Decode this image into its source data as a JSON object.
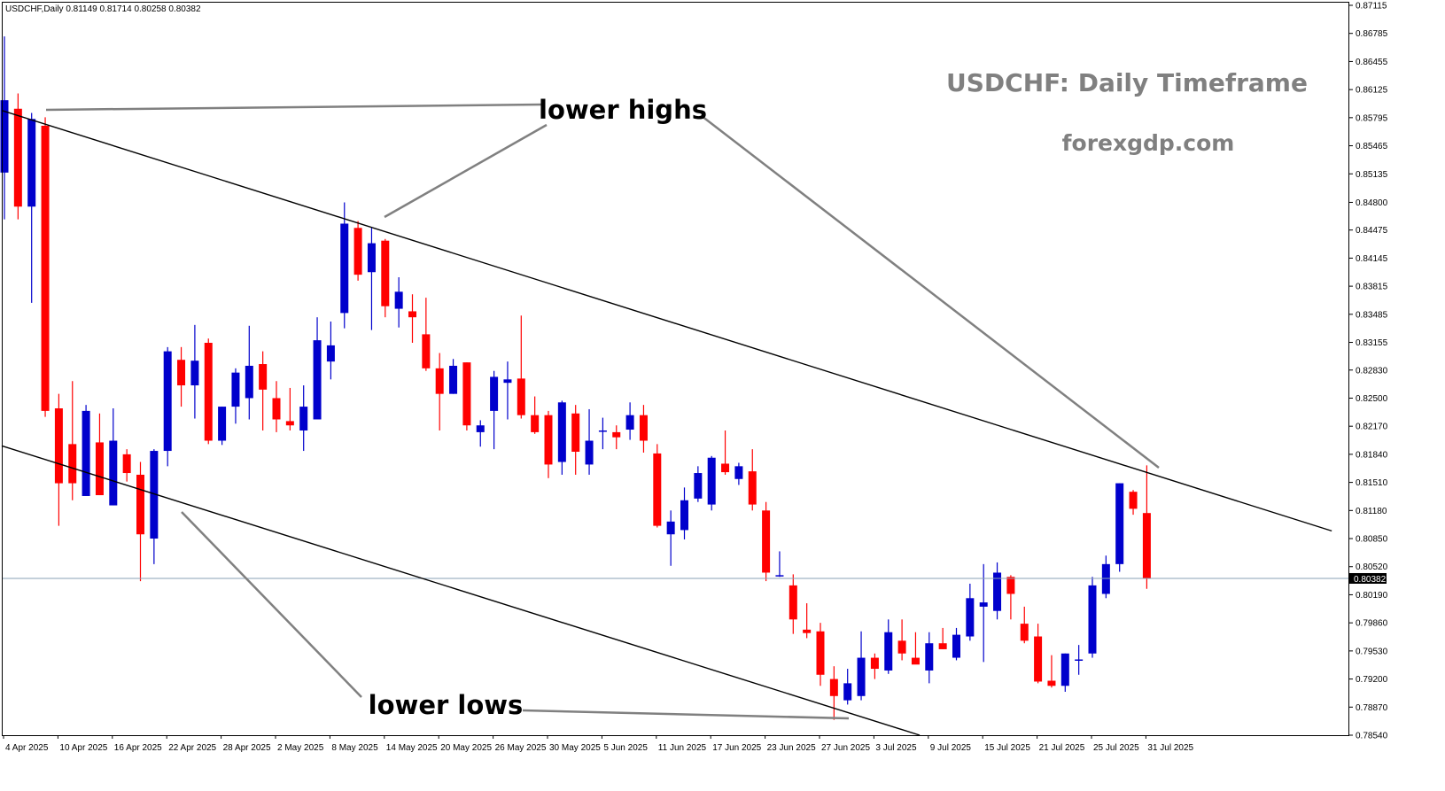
{
  "chart_data": {
    "type": "candlestick",
    "symbol_header": "USDCHF,Daily  0.81149 0.81714 0.80258 0.80382",
    "title": "USDCHF: Daily Timeframe",
    "subtitle": "forexgdp.com",
    "current_price": 0.80382,
    "current_price_label": "0.80382",
    "ylim": [
      0.7854,
      0.87115
    ],
    "y_ticks": [
      "0.87115",
      "0.86785",
      "0.86455",
      "0.86125",
      "0.85795",
      "0.85465",
      "0.85135",
      "0.84800",
      "0.84475",
      "0.84145",
      "0.83815",
      "0.83485",
      "0.83155",
      "0.82830",
      "0.82500",
      "0.82170",
      "0.81840",
      "0.81510",
      "0.81180",
      "0.80850",
      "0.80520",
      "0.80190",
      "0.79860",
      "0.79530",
      "0.79200",
      "0.78870",
      "0.78540"
    ],
    "x_labels": [
      {
        "label": "4 Apr 2025",
        "index": 0
      },
      {
        "label": "10 Apr 2025",
        "index": 4
      },
      {
        "label": "16 Apr 2025",
        "index": 8
      },
      {
        "label": "22 Apr 2025",
        "index": 12
      },
      {
        "label": "28 Apr 2025",
        "index": 16
      },
      {
        "label": "2 May 2025",
        "index": 20
      },
      {
        "label": "8 May 2025",
        "index": 24
      },
      {
        "label": "14 May 2025",
        "index": 28
      },
      {
        "label": "20 May 2025",
        "index": 32
      },
      {
        "label": "26 May 2025",
        "index": 36
      },
      {
        "label": "30 May 2025",
        "index": 40
      },
      {
        "label": "5 Jun 2025",
        "index": 44
      },
      {
        "label": "11 Jun 2025",
        "index": 48
      },
      {
        "label": "17 Jun 2025",
        "index": 52
      },
      {
        "label": "23 Jun 2025",
        "index": 56
      },
      {
        "label": "27 Jun 2025",
        "index": 60
      },
      {
        "label": "3 Jul 2025",
        "index": 64
      },
      {
        "label": "9 Jul 2025",
        "index": 68
      },
      {
        "label": "15 Jul 2025",
        "index": 72
      },
      {
        "label": "21 Jul 2025",
        "index": 76
      },
      {
        "label": "25 Jul 2025",
        "index": 80
      },
      {
        "label": "31 Jul 2025",
        "index": 84
      }
    ],
    "bull_color": "#0000cc",
    "bear_color": "#ff0000",
    "candles": [
      {
        "o": 0.8515,
        "h": 0.8675,
        "l": 0.846,
        "c": 0.86
      },
      {
        "o": 0.859,
        "h": 0.8608,
        "l": 0.846,
        "c": 0.8475
      },
      {
        "o": 0.8475,
        "h": 0.8585,
        "l": 0.8362,
        "c": 0.8578
      },
      {
        "o": 0.857,
        "h": 0.858,
        "l": 0.8228,
        "c": 0.8235
      },
      {
        "o": 0.8238,
        "h": 0.8255,
        "l": 0.81,
        "c": 0.815
      },
      {
        "o": 0.8196,
        "h": 0.827,
        "l": 0.813,
        "c": 0.815
      },
      {
        "o": 0.8135,
        "h": 0.8242,
        "l": 0.8135,
        "c": 0.8235
      },
      {
        "o": 0.8198,
        "h": 0.8232,
        "l": 0.8136,
        "c": 0.8136
      },
      {
        "o": 0.8124,
        "h": 0.8238,
        "l": 0.8124,
        "c": 0.82
      },
      {
        "o": 0.8184,
        "h": 0.819,
        "l": 0.8152,
        "c": 0.8162
      },
      {
        "o": 0.816,
        "h": 0.8175,
        "l": 0.8035,
        "c": 0.809
      },
      {
        "o": 0.8085,
        "h": 0.819,
        "l": 0.8055,
        "c": 0.8188
      },
      {
        "o": 0.8188,
        "h": 0.831,
        "l": 0.817,
        "c": 0.8305
      },
      {
        "o": 0.8295,
        "h": 0.831,
        "l": 0.824,
        "c": 0.8265
      },
      {
        "o": 0.8265,
        "h": 0.8336,
        "l": 0.8226,
        "c": 0.8294
      },
      {
        "o": 0.8315,
        "h": 0.832,
        "l": 0.8196,
        "c": 0.82
      },
      {
        "o": 0.82,
        "h": 0.824,
        "l": 0.8195,
        "c": 0.824
      },
      {
        "o": 0.824,
        "h": 0.8285,
        "l": 0.822,
        "c": 0.828
      },
      {
        "o": 0.825,
        "h": 0.8335,
        "l": 0.8225,
        "c": 0.8288
      },
      {
        "o": 0.829,
        "h": 0.8305,
        "l": 0.8212,
        "c": 0.826
      },
      {
        "o": 0.825,
        "h": 0.827,
        "l": 0.821,
        "c": 0.8225
      },
      {
        "o": 0.8223,
        "h": 0.8262,
        "l": 0.8212,
        "c": 0.8218
      },
      {
        "o": 0.8212,
        "h": 0.8265,
        "l": 0.8188,
        "c": 0.824
      },
      {
        "o": 0.8225,
        "h": 0.8345,
        "l": 0.8225,
        "c": 0.8318
      },
      {
        "o": 0.8293,
        "h": 0.834,
        "l": 0.8272,
        "c": 0.8312
      },
      {
        "o": 0.835,
        "h": 0.848,
        "l": 0.8332,
        "c": 0.8455
      },
      {
        "o": 0.845,
        "h": 0.8458,
        "l": 0.8388,
        "c": 0.8395
      },
      {
        "o": 0.8398,
        "h": 0.845,
        "l": 0.833,
        "c": 0.8432
      },
      {
        "o": 0.8435,
        "h": 0.8437,
        "l": 0.8345,
        "c": 0.8358
      },
      {
        "o": 0.8355,
        "h": 0.8392,
        "l": 0.8333,
        "c": 0.8375
      },
      {
        "o": 0.8352,
        "h": 0.8372,
        "l": 0.8315,
        "c": 0.8345
      },
      {
        "o": 0.8325,
        "h": 0.8368,
        "l": 0.8282,
        "c": 0.8285
      },
      {
        "o": 0.8285,
        "h": 0.8303,
        "l": 0.8212,
        "c": 0.8255
      },
      {
        "o": 0.8255,
        "h": 0.8296,
        "l": 0.8255,
        "c": 0.8288
      },
      {
        "o": 0.8292,
        "h": 0.8292,
        "l": 0.8212,
        "c": 0.8218
      },
      {
        "o": 0.821,
        "h": 0.8224,
        "l": 0.8193,
        "c": 0.8218
      },
      {
        "o": 0.8235,
        "h": 0.8282,
        "l": 0.819,
        "c": 0.8275
      },
      {
        "o": 0.8268,
        "h": 0.8293,
        "l": 0.8225,
        "c": 0.8272
      },
      {
        "o": 0.8273,
        "h": 0.8347,
        "l": 0.8226,
        "c": 0.823
      },
      {
        "o": 0.823,
        "h": 0.8252,
        "l": 0.8208,
        "c": 0.821
      },
      {
        "o": 0.823,
        "h": 0.8235,
        "l": 0.8156,
        "c": 0.8172
      },
      {
        "o": 0.8175,
        "h": 0.8247,
        "l": 0.816,
        "c": 0.8245
      },
      {
        "o": 0.8232,
        "h": 0.8242,
        "l": 0.816,
        "c": 0.8187
      },
      {
        "o": 0.8172,
        "h": 0.8237,
        "l": 0.816,
        "c": 0.82
      },
      {
        "o": 0.8212,
        "h": 0.8227,
        "l": 0.819,
        "c": 0.8212
      },
      {
        "o": 0.821,
        "h": 0.8218,
        "l": 0.819,
        "c": 0.8204
      },
      {
        "o": 0.8213,
        "h": 0.8245,
        "l": 0.8201,
        "c": 0.823
      },
      {
        "o": 0.823,
        "h": 0.8242,
        "l": 0.8186,
        "c": 0.82
      },
      {
        "o": 0.8185,
        "h": 0.8196,
        "l": 0.8098,
        "c": 0.81
      },
      {
        "o": 0.809,
        "h": 0.8118,
        "l": 0.8053,
        "c": 0.8105
      },
      {
        "o": 0.8095,
        "h": 0.8145,
        "l": 0.8084,
        "c": 0.813
      },
      {
        "o": 0.8132,
        "h": 0.817,
        "l": 0.8128,
        "c": 0.8162
      },
      {
        "o": 0.8125,
        "h": 0.8182,
        "l": 0.8118,
        "c": 0.818
      },
      {
        "o": 0.8173,
        "h": 0.8212,
        "l": 0.816,
        "c": 0.8163
      },
      {
        "o": 0.8155,
        "h": 0.8174,
        "l": 0.8148,
        "c": 0.817
      },
      {
        "o": 0.8164,
        "h": 0.819,
        "l": 0.8118,
        "c": 0.8125
      },
      {
        "o": 0.8118,
        "h": 0.8128,
        "l": 0.8035,
        "c": 0.8045
      },
      {
        "o": 0.8042,
        "h": 0.807,
        "l": 0.804,
        "c": 0.8042
      },
      {
        "o": 0.803,
        "h": 0.8043,
        "l": 0.7973,
        "c": 0.799
      },
      {
        "o": 0.7978,
        "h": 0.8009,
        "l": 0.7968,
        "c": 0.7974
      },
      {
        "o": 0.7976,
        "h": 0.7986,
        "l": 0.7912,
        "c": 0.7925
      },
      {
        "o": 0.792,
        "h": 0.7935,
        "l": 0.7872,
        "c": 0.79
      },
      {
        "o": 0.7895,
        "h": 0.7932,
        "l": 0.789,
        "c": 0.7915
      },
      {
        "o": 0.79,
        "h": 0.7976,
        "l": 0.7895,
        "c": 0.7945
      },
      {
        "o": 0.7945,
        "h": 0.795,
        "l": 0.792,
        "c": 0.7932
      },
      {
        "o": 0.793,
        "h": 0.799,
        "l": 0.7926,
        "c": 0.7975
      },
      {
        "o": 0.7965,
        "h": 0.799,
        "l": 0.7942,
        "c": 0.795
      },
      {
        "o": 0.7945,
        "h": 0.7975,
        "l": 0.794,
        "c": 0.7937
      },
      {
        "o": 0.793,
        "h": 0.7975,
        "l": 0.7915,
        "c": 0.7962
      },
      {
        "o": 0.7962,
        "h": 0.798,
        "l": 0.7955,
        "c": 0.7955
      },
      {
        "o": 0.7945,
        "h": 0.798,
        "l": 0.7942,
        "c": 0.7972
      },
      {
        "o": 0.797,
        "h": 0.8032,
        "l": 0.7965,
        "c": 0.8015
      },
      {
        "o": 0.8005,
        "h": 0.8055,
        "l": 0.794,
        "c": 0.801
      },
      {
        "o": 0.8,
        "h": 0.8057,
        "l": 0.799,
        "c": 0.8045
      },
      {
        "o": 0.804,
        "h": 0.8042,
        "l": 0.799,
        "c": 0.802
      },
      {
        "o": 0.7985,
        "h": 0.8005,
        "l": 0.7962,
        "c": 0.7965
      },
      {
        "o": 0.797,
        "h": 0.7985,
        "l": 0.7915,
        "c": 0.7917
      },
      {
        "o": 0.7918,
        "h": 0.7948,
        "l": 0.791,
        "c": 0.7912
      },
      {
        "o": 0.7912,
        "h": 0.795,
        "l": 0.7905,
        "c": 0.795
      },
      {
        "o": 0.7942,
        "h": 0.796,
        "l": 0.7925,
        "c": 0.7943
      },
      {
        "o": 0.795,
        "h": 0.804,
        "l": 0.7945,
        "c": 0.803
      },
      {
        "o": 0.802,
        "h": 0.8065,
        "l": 0.8015,
        "c": 0.8055
      },
      {
        "o": 0.8055,
        "h": 0.815,
        "l": 0.8046,
        "c": 0.815
      },
      {
        "o": 0.814,
        "h": 0.8142,
        "l": 0.8113,
        "c": 0.812
      },
      {
        "o": 0.8115,
        "h": 0.8171,
        "l": 0.8026,
        "c": 0.8038
      }
    ],
    "trendlines": [
      {
        "name": "upper-channel-line",
        "from": {
          "index": -0.2,
          "price": 0.8588
        },
        "to": {
          "index": 97.6,
          "price": 0.8094
        }
      },
      {
        "name": "lower-channel-line",
        "from": {
          "index": -0.2,
          "price": 0.8194
        },
        "to": {
          "index": 67.3,
          "price": 0.7854
        }
      }
    ],
    "annotations": {
      "lower_highs": "lower highs",
      "lower_lows": "lower lows"
    },
    "colors": {
      "title_gray": "#808080",
      "pointer_gray": "#808080",
      "price_line": "#8aa0b4",
      "axis": "#000000"
    }
  }
}
